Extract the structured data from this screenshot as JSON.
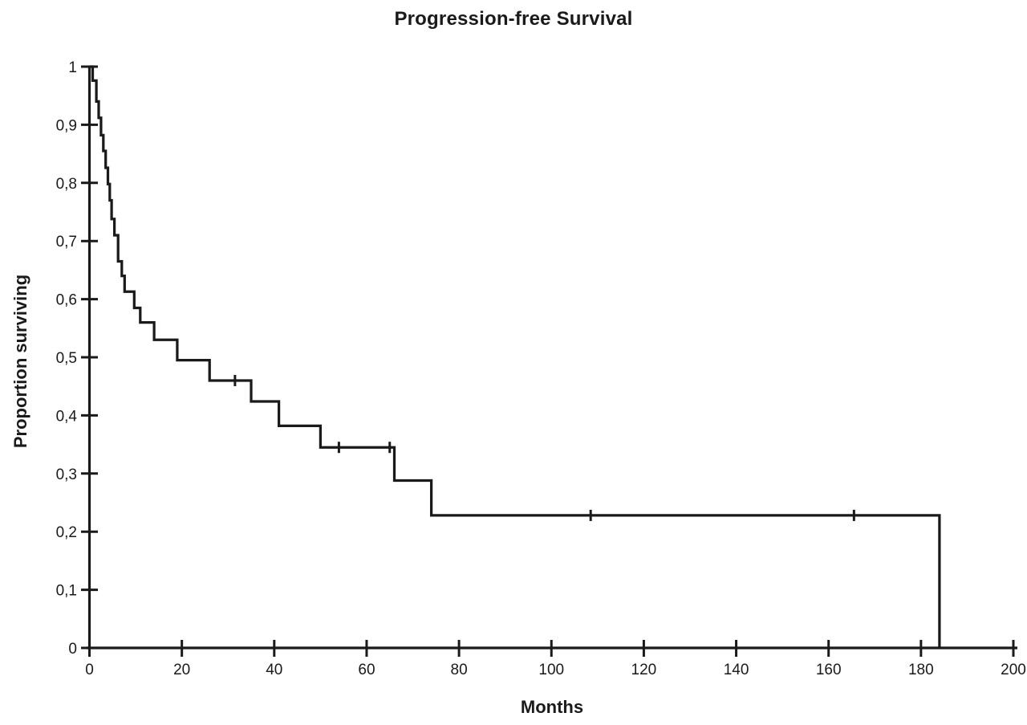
{
  "title": "Progression-free Survival",
  "colors": {
    "line": "#1a1a1a",
    "axis": "#1a1a1a",
    "text": "#1a1a1a",
    "background": "#ffffff"
  },
  "chart_data": {
    "type": "line",
    "subtype": "kaplan-meier-step",
    "title": "Progression-free Survival",
    "xlabel": "Months",
    "ylabel": "Proportion surviving",
    "xlim": [
      0,
      200
    ],
    "ylim": [
      0,
      1
    ],
    "grid": false,
    "legend": false,
    "decimal_separator": ",",
    "x_ticks": {
      "values": [
        0,
        20,
        40,
        60,
        80,
        100,
        120,
        140,
        160,
        180,
        200
      ],
      "labels": [
        "0",
        "20",
        "40",
        "60",
        "80",
        "100",
        "120",
        "140",
        "160",
        "180",
        "200"
      ]
    },
    "y_ticks": {
      "values": [
        0,
        0.1,
        0.2,
        0.3,
        0.4,
        0.5,
        0.6,
        0.7,
        0.8,
        0.9,
        1
      ],
      "labels": [
        "0",
        "0,1",
        "0,2",
        "0,3",
        "0,4",
        "0,5",
        "0,6",
        "0,7",
        "0,8",
        "0,9",
        "1"
      ]
    },
    "series": [
      {
        "name": "Progression-free survival",
        "color": "#1a1a1a",
        "steps": [
          [
            0,
            1.0
          ],
          [
            0.7,
            0.976
          ],
          [
            1.5,
            0.94
          ],
          [
            2.0,
            0.912
          ],
          [
            2.5,
            0.882
          ],
          [
            3.0,
            0.855
          ],
          [
            3.5,
            0.826
          ],
          [
            4.0,
            0.798
          ],
          [
            4.4,
            0.77
          ],
          [
            4.8,
            0.738
          ],
          [
            5.4,
            0.71
          ],
          [
            6.2,
            0.665
          ],
          [
            7.0,
            0.64
          ],
          [
            7.6,
            0.613
          ],
          [
            9.7,
            0.585
          ],
          [
            11.0,
            0.56
          ],
          [
            14.0,
            0.53
          ],
          [
            19.0,
            0.495
          ],
          [
            26.0,
            0.46
          ],
          [
            35.0,
            0.424
          ],
          [
            41.0,
            0.382
          ],
          [
            50.0,
            0.345
          ],
          [
            66.0,
            0.288
          ],
          [
            74.0,
            0.228
          ],
          [
            184.0,
            0.0
          ]
        ],
        "censor_marks": [
          [
            31.5,
            0.46
          ],
          [
            54.0,
            0.345
          ],
          [
            65.0,
            0.345
          ],
          [
            108.5,
            0.228
          ],
          [
            165.5,
            0.228
          ]
        ]
      }
    ]
  }
}
